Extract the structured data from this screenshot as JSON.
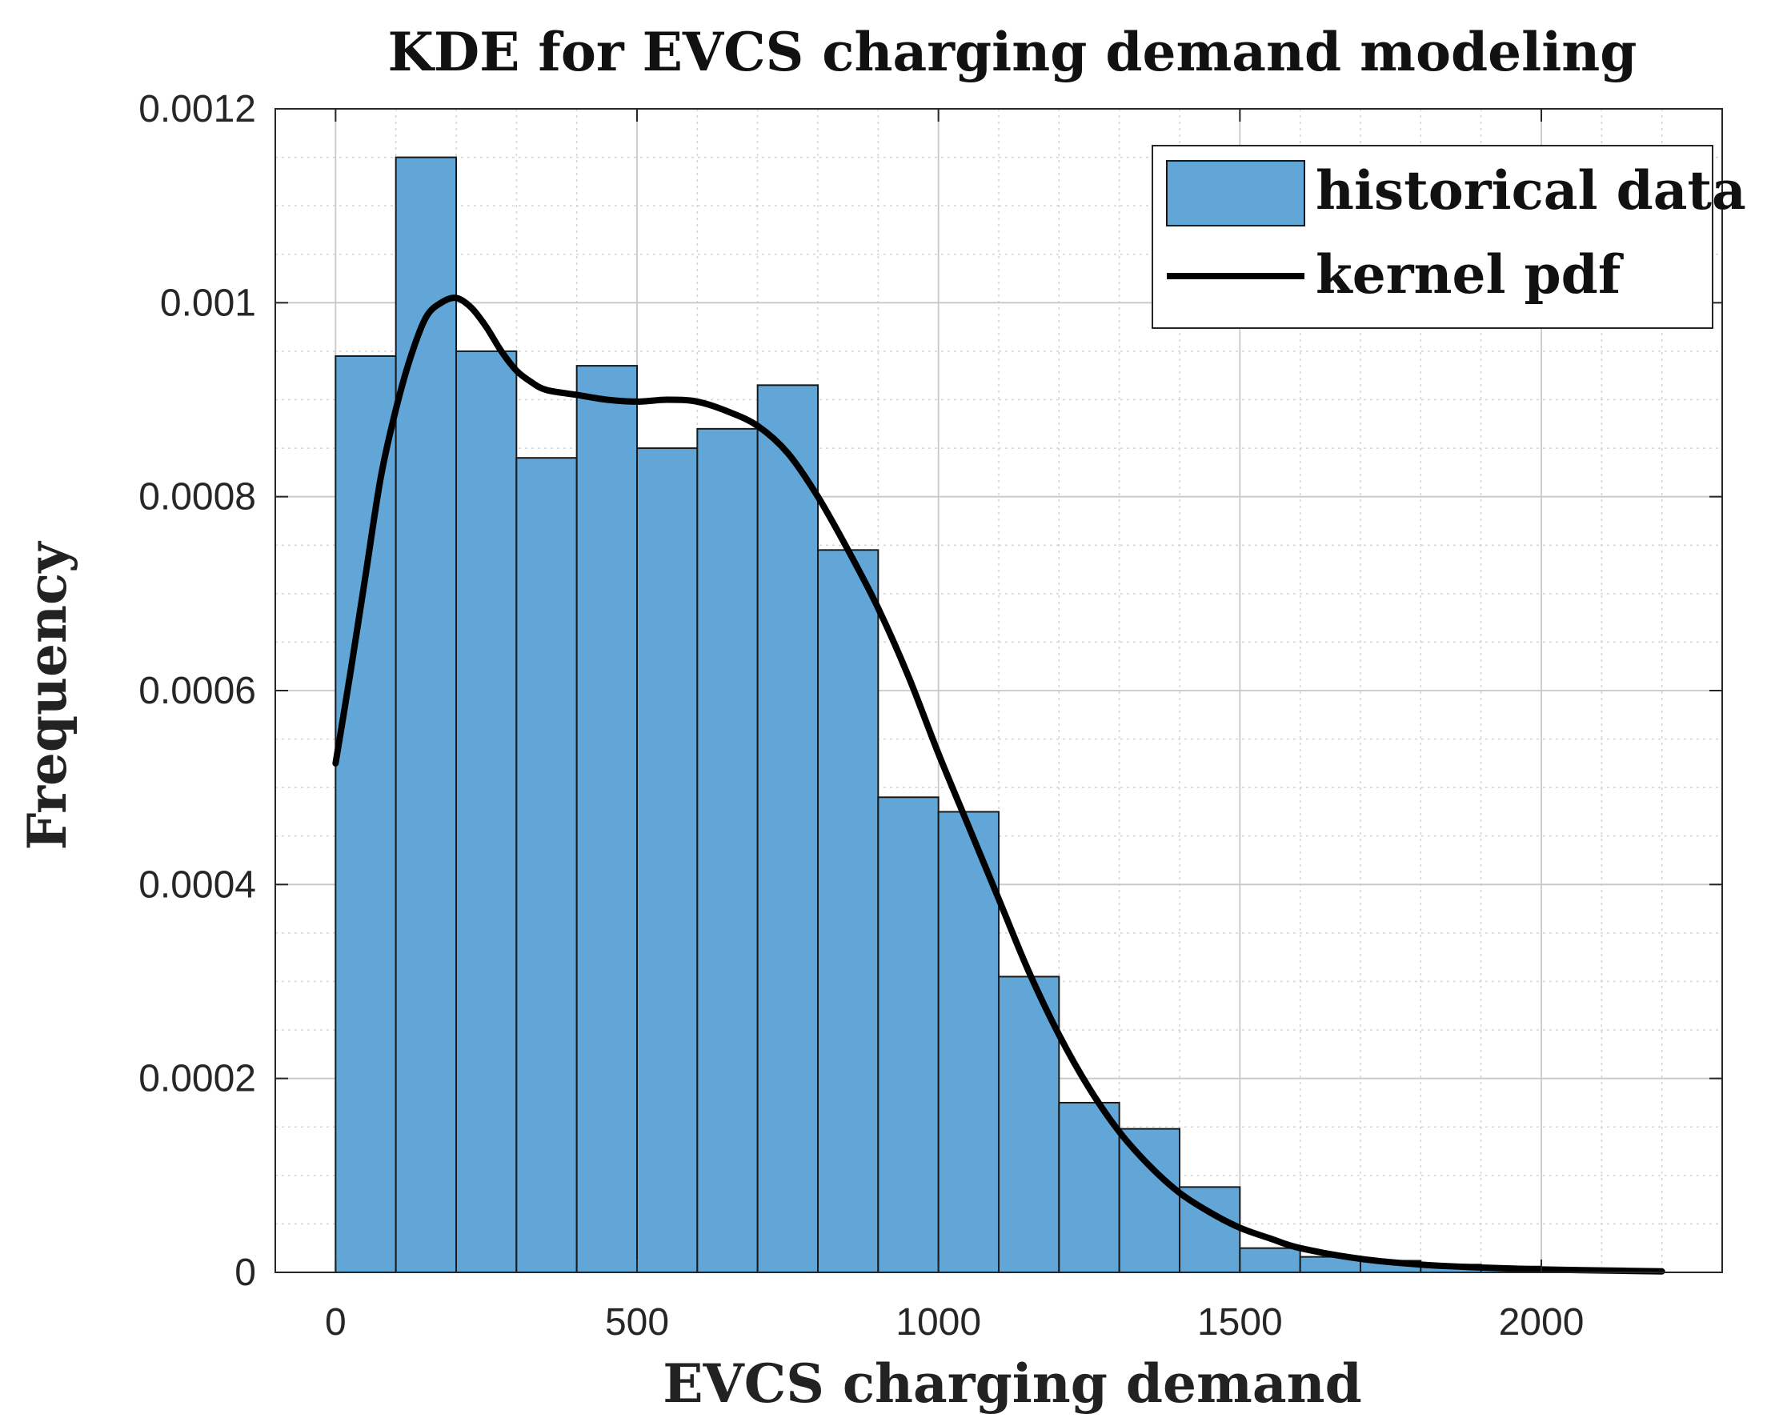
{
  "chart_data": {
    "type": "bar",
    "title": "KDE for EVCS charging demand modeling",
    "xlabel": "EVCS charging demand",
    "ylabel": "Frequency",
    "xlim": [
      -100,
      2300
    ],
    "ylim": [
      0,
      0.0012
    ],
    "xticks": [
      0,
      500,
      1000,
      1500,
      2000
    ],
    "xtick_labels": [
      "0",
      "500",
      "1000",
      "1500",
      "2000"
    ],
    "yticks": [
      0,
      0.0002,
      0.0004,
      0.0006,
      0.0008,
      0.001,
      0.0012
    ],
    "ytick_labels": [
      "0",
      "0.0002",
      "0.0004",
      "0.0006",
      "0.0008",
      "0.001",
      "0.0012"
    ],
    "grid": true,
    "minor_grid": true,
    "legend_position": "top-right",
    "series": [
      {
        "name": "historical data",
        "kind": "histogram",
        "color": "#61a6d6",
        "edge_color": "#1a1a1a",
        "bin_edges": [
          0,
          100,
          200,
          300,
          400,
          500,
          600,
          700,
          800,
          900,
          1000,
          1100,
          1200,
          1300,
          1400,
          1500,
          1600,
          1700,
          1800,
          1900,
          2000,
          2100,
          2200
        ],
        "values": [
          0.000945,
          0.00115,
          0.00095,
          0.00084,
          0.000935,
          0.00085,
          0.00087,
          0.000915,
          0.000745,
          0.00049,
          0.000475,
          0.000305,
          0.000175,
          0.000148,
          8.8e-05,
          2.5e-05,
          1.6e-05,
          1.2e-05,
          8e-06,
          6e-06,
          4e-06,
          2e-06
        ]
      },
      {
        "name": "kernel pdf",
        "kind": "line",
        "color": "#000000",
        "x": [
          0,
          25,
          50,
          75,
          100,
          125,
          150,
          175,
          200,
          225,
          250,
          275,
          300,
          325,
          350,
          400,
          450,
          500,
          550,
          600,
          650,
          700,
          750,
          800,
          850,
          900,
          950,
          1000,
          1050,
          1100,
          1150,
          1200,
          1250,
          1300,
          1350,
          1400,
          1450,
          1500,
          1550,
          1600,
          1700,
          1800,
          1900,
          2000,
          2100,
          2200
        ],
        "y": [
          0.000525,
          0.00062,
          0.00072,
          0.00082,
          0.00089,
          0.000945,
          0.000985,
          0.001,
          0.001005,
          0.000995,
          0.000975,
          0.00095,
          0.00093,
          0.000918,
          0.00091,
          0.000905,
          0.0009,
          0.000898,
          0.0009,
          0.000898,
          0.000888,
          0.000873,
          0.000845,
          0.0008,
          0.000745,
          0.000685,
          0.000615,
          0.000535,
          0.00046,
          0.000385,
          0.00031,
          0.000245,
          0.00019,
          0.000145,
          0.00011,
          8.2e-05,
          6.2e-05,
          4.6e-05,
          3.5e-05,
          2.5e-05,
          1.4e-05,
          8e-06,
          5e-06,
          3e-06,
          2e-06,
          1e-06
        ]
      }
    ]
  }
}
